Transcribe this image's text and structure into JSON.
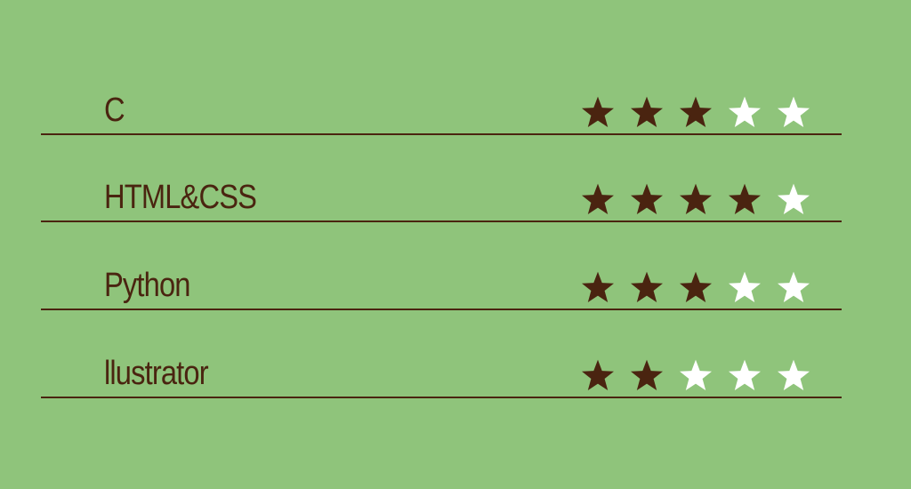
{
  "colors": {
    "background": "#8fc47b",
    "text": "#4a2410",
    "star_filled": "#4a2410",
    "star_empty": "#ffffff"
  },
  "max_stars": 5,
  "skills": [
    {
      "name": "C",
      "rating": 3
    },
    {
      "name": "HTML&CSS",
      "rating": 4
    },
    {
      "name": "Python",
      "rating": 3
    },
    {
      "name": "llustrator",
      "rating": 2
    }
  ]
}
